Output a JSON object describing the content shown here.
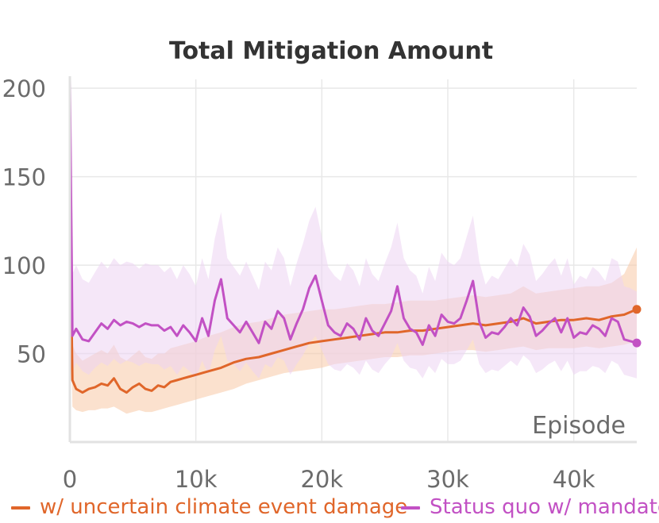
{
  "chart_data": {
    "type": "line",
    "title": "Total Mitigation Amount",
    "xlabel": "Episode",
    "ylabel": "",
    "xlim": [
      0,
      45000
    ],
    "ylim": [
      0,
      205
    ],
    "x_ticks": [
      0,
      10000,
      20000,
      30000,
      40000
    ],
    "x_tick_labels": [
      "0",
      "10k",
      "20k",
      "30k",
      "40k"
    ],
    "y_ticks": [
      50,
      100,
      150,
      200
    ],
    "y_tick_labels": [
      "50",
      "100",
      "150",
      "200"
    ],
    "grid": true,
    "legend_position": "bottom",
    "series": [
      {
        "name": "w/ uncertain climate event damage",
        "color": "#e0662a",
        "band_color": "#f7c9a6",
        "x": [
          0,
          200,
          500,
          1000,
          1500,
          2000,
          2500,
          3000,
          3500,
          4000,
          4500,
          5000,
          5500,
          6000,
          6500,
          7000,
          7500,
          8000,
          8500,
          9000,
          9500,
          10000,
          11000,
          12000,
          13000,
          14000,
          15000,
          16000,
          17000,
          18000,
          19000,
          20000,
          21000,
          22000,
          23000,
          24000,
          25000,
          26000,
          27000,
          28000,
          29000,
          30000,
          31000,
          32000,
          33000,
          34000,
          35000,
          36000,
          37000,
          38000,
          39000,
          40000,
          41000,
          42000,
          43000,
          44000,
          45000
        ],
        "values": [
          140,
          35,
          30,
          28,
          30,
          31,
          33,
          32,
          36,
          30,
          28,
          31,
          33,
          30,
          29,
          32,
          31,
          34,
          35,
          36,
          37,
          38,
          40,
          42,
          45,
          47,
          48,
          50,
          52,
          54,
          56,
          57,
          58,
          59,
          60,
          61,
          62,
          62,
          63,
          63,
          64,
          65,
          66,
          67,
          66,
          67,
          68,
          70,
          67,
          68,
          69,
          69,
          70,
          69,
          71,
          72,
          75
        ],
        "band_low": [
          110,
          20,
          18,
          17,
          18,
          18,
          19,
          19,
          20,
          18,
          16,
          17,
          18,
          17,
          17,
          18,
          19,
          20,
          21,
          22,
          23,
          24,
          26,
          28,
          30,
          33,
          35,
          37,
          39,
          40,
          41,
          42,
          44,
          45,
          46,
          47,
          48,
          48,
          49,
          49,
          50,
          51,
          52,
          52,
          51,
          52,
          53,
          54,
          52,
          53,
          53,
          53,
          54,
          53,
          54,
          55,
          57
        ],
        "band_high": [
          205,
          55,
          50,
          46,
          48,
          50,
          52,
          50,
          55,
          48,
          46,
          49,
          52,
          48,
          47,
          50,
          50,
          53,
          54,
          55,
          56,
          57,
          60,
          62,
          65,
          67,
          68,
          70,
          72,
          73,
          74,
          75,
          75,
          76,
          77,
          78,
          78,
          79,
          80,
          80,
          80,
          81,
          82,
          83,
          82,
          83,
          84,
          88,
          84,
          85,
          86,
          87,
          88,
          88,
          90,
          95,
          110
        ]
      },
      {
        "name": "Status quo w/ mandate",
        "color": "#c251c4",
        "band_color": "#edd3f3",
        "x": [
          0,
          200,
          500,
          1000,
          1500,
          2000,
          2500,
          3000,
          3500,
          4000,
          4500,
          5000,
          5500,
          6000,
          6500,
          7000,
          7500,
          8000,
          8500,
          9000,
          9500,
          10000,
          10500,
          11000,
          11500,
          12000,
          12500,
          13000,
          13500,
          14000,
          14500,
          15000,
          15500,
          16000,
          16500,
          17000,
          17500,
          18000,
          18500,
          19000,
          19500,
          20000,
          20500,
          21000,
          21500,
          22000,
          22500,
          23000,
          23500,
          24000,
          24500,
          25000,
          25500,
          26000,
          26500,
          27000,
          27500,
          28000,
          28500,
          29000,
          29500,
          30000,
          30500,
          31000,
          31500,
          32000,
          32500,
          33000,
          33500,
          34000,
          34500,
          35000,
          35500,
          36000,
          36500,
          37000,
          37500,
          38000,
          38500,
          39000,
          39500,
          40000,
          40500,
          41000,
          41500,
          42000,
          42500,
          43000,
          43500,
          44000,
          44500,
          45000
        ],
        "values": [
          205,
          60,
          64,
          58,
          57,
          62,
          67,
          64,
          69,
          66,
          68,
          67,
          65,
          67,
          66,
          66,
          63,
          65,
          60,
          66,
          62,
          57,
          70,
          60,
          80,
          92,
          70,
          66,
          62,
          68,
          62,
          56,
          68,
          64,
          74,
          70,
          58,
          67,
          75,
          87,
          94,
          80,
          66,
          62,
          60,
          67,
          64,
          58,
          70,
          63,
          60,
          67,
          74,
          88,
          70,
          64,
          62,
          55,
          66,
          60,
          72,
          68,
          67,
          70,
          80,
          91,
          68,
          59,
          62,
          61,
          65,
          70,
          66,
          76,
          71,
          60,
          63,
          67,
          70,
          62,
          70,
          59,
          62,
          61,
          66,
          64,
          60,
          70,
          68,
          58,
          57,
          56
        ],
        "band_low": [
          130,
          40,
          45,
          40,
          38,
          42,
          45,
          43,
          47,
          44,
          46,
          45,
          43,
          45,
          44,
          44,
          41,
          43,
          38,
          43,
          40,
          36,
          46,
          38,
          52,
          60,
          46,
          44,
          40,
          45,
          40,
          36,
          44,
          42,
          48,
          46,
          38,
          44,
          49,
          56,
          60,
          52,
          44,
          41,
          40,
          44,
          42,
          38,
          46,
          41,
          39,
          44,
          48,
          56,
          46,
          42,
          41,
          36,
          43,
          39,
          47,
          44,
          44,
          46,
          52,
          58,
          44,
          39,
          41,
          40,
          43,
          46,
          43,
          49,
          46,
          39,
          41,
          44,
          46,
          40,
          46,
          38,
          40,
          40,
          43,
          42,
          39,
          46,
          44,
          38,
          37,
          36
        ],
        "band_high": [
          205,
          95,
          100,
          92,
          90,
          96,
          102,
          98,
          104,
          100,
          102,
          101,
          98,
          101,
          100,
          100,
          96,
          99,
          92,
          100,
          95,
          88,
          104,
          92,
          115,
          130,
          104,
          99,
          94,
          102,
          94,
          86,
          102,
          97,
          110,
          104,
          88,
          101,
          112,
          125,
          133,
          116,
          99,
          94,
          91,
          101,
          97,
          88,
          104,
          95,
          91,
          101,
          110,
          124,
          104,
          97,
          94,
          84,
          99,
          91,
          107,
          102,
          100,
          104,
          116,
          128,
          102,
          89,
          94,
          92,
          98,
          104,
          99,
          112,
          106,
          91,
          95,
          100,
          104,
          94,
          104,
          89,
          94,
          92,
          99,
          96,
          91,
          104,
          102,
          88,
          87,
          85
        ]
      }
    ]
  }
}
